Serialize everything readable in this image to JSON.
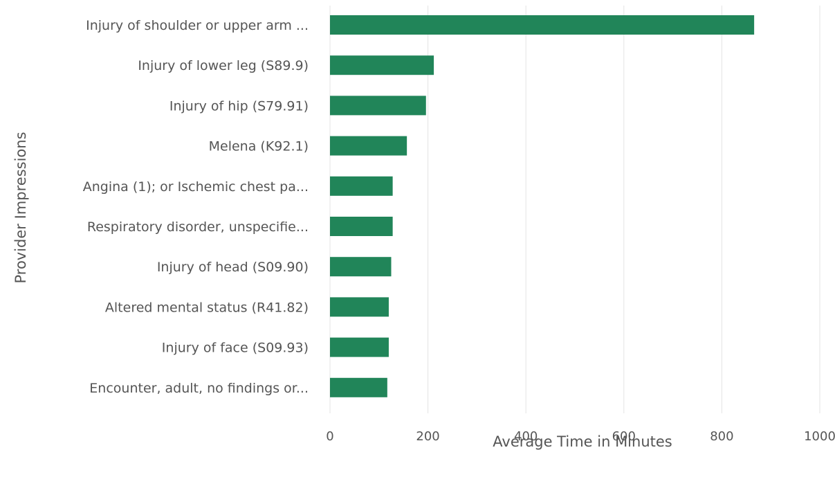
{
  "chart_data": {
    "type": "bar",
    "orientation": "horizontal",
    "categories": [
      "Injury of shoulder or upper arm ...",
      "Injury of lower leg (S89.9)",
      "Injury of hip (S79.91)",
      "Melena (K92.1)",
      "Angina (1); or Ischemic chest pa...",
      "Respiratory disorder, unspecifie...",
      "Injury of head (S09.90)",
      "Altered mental status (R41.82)",
      "Injury of face (S09.93)",
      "Encounter, adult, no findings or..."
    ],
    "values": [
      866,
      212,
      196,
      157,
      128,
      128,
      125,
      120,
      120,
      117
    ],
    "xlabel": "Average Time in Minutes",
    "ylabel": "Provider Impressions",
    "xlim": [
      0,
      1000
    ],
    "xticks": [
      0,
      200,
      400,
      600,
      800,
      1000
    ],
    "xtick_labels": [
      "0",
      "200",
      "400",
      "600",
      "800",
      "1000"
    ],
    "grid": true,
    "bar_color": "#218559",
    "grid_color": "#e3e3e3",
    "text_color": "#555555"
  }
}
